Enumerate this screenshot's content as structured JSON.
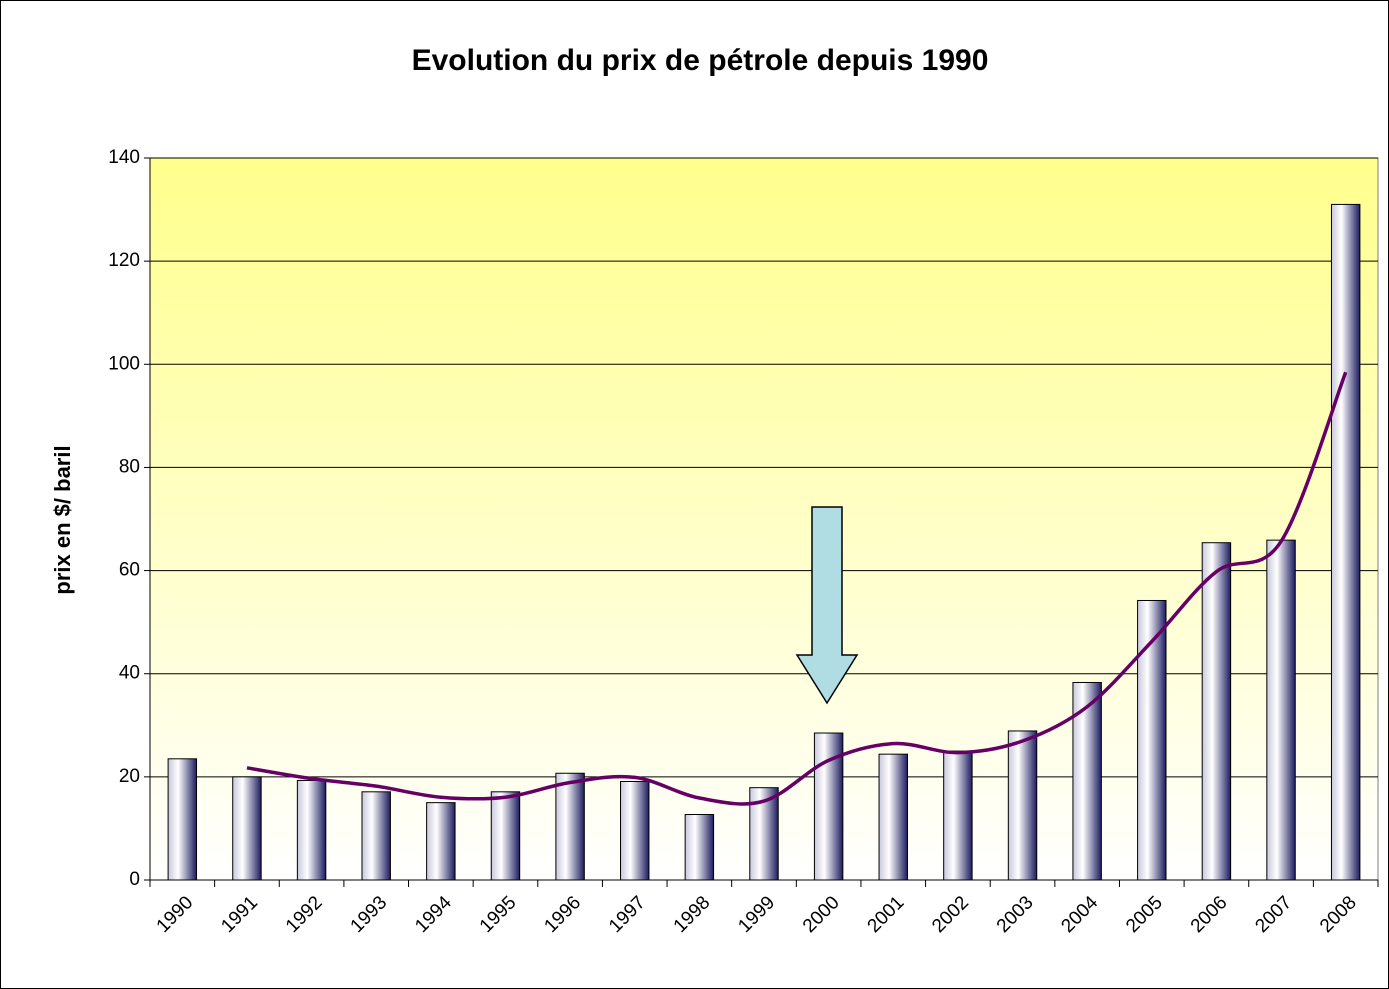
{
  "chart_data": {
    "type": "bar",
    "title": "Evolution du prix de pétrole depuis 1990",
    "y_label": "prix en $/ baril",
    "categories": [
      "1990",
      "1991",
      "1992",
      "1993",
      "1994",
      "1995",
      "1996",
      "1997",
      "1998",
      "1999",
      "2000",
      "2001",
      "2002",
      "2003",
      "2004",
      "2005",
      "2006",
      "2007",
      "2008"
    ],
    "values": [
      23.5,
      20,
      19.3,
      17.1,
      15,
      17.1,
      20.7,
      19.1,
      12.7,
      17.9,
      28.5,
      24.4,
      25,
      28.9,
      38.3,
      54.2,
      65.4,
      65.9,
      131
    ],
    "color": "#1c1c60",
    "trend": {
      "color": "#660066",
      "values": [
        null,
        21.75,
        19.65,
        18.2,
        16.05,
        16.05,
        18.9,
        19.9,
        15.9,
        15.3,
        23.2,
        26.45,
        24.7,
        26.95,
        33.6,
        46.25,
        59.8,
        65.65,
        98.45
      ]
    },
    "ylim": [
      0,
      140
    ],
    "yticks": [
      0,
      20,
      40,
      60,
      80,
      100,
      120,
      140
    ],
    "grid": true
  }
}
